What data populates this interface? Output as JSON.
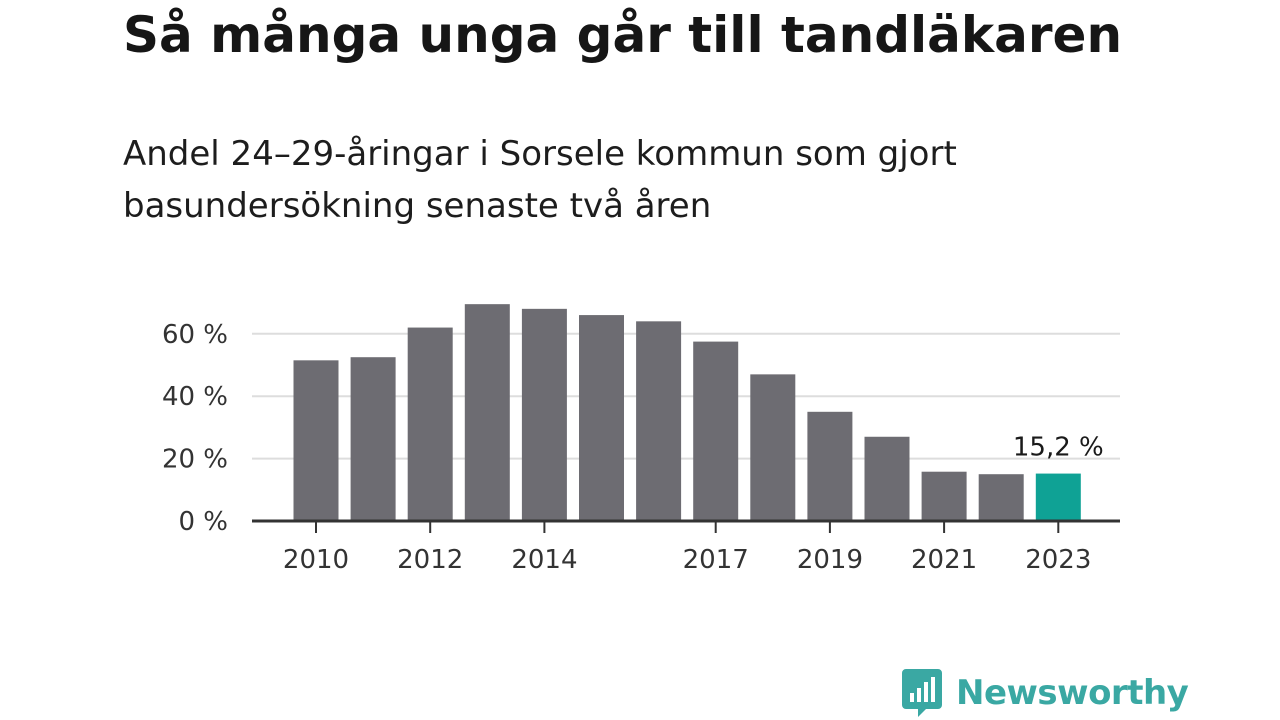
{
  "header": {
    "title": "Så många unga går till tandläkaren",
    "subtitle": "Andel 24–29-åringar i Sorsele kommun som gjort basundersökning senaste två åren"
  },
  "brand": {
    "name": "Newsworthy",
    "icon": "chart-bubble-icon",
    "color": "#3aa8a3"
  },
  "chart_data": {
    "type": "bar",
    "title": "",
    "xlabel": "",
    "ylabel": "",
    "categories": [
      "2010",
      "2011",
      "2012",
      "2013",
      "2014",
      "2015",
      "2016",
      "2017",
      "2018",
      "2019",
      "2020",
      "2021",
      "2022",
      "2023"
    ],
    "values": [
      51.5,
      52.5,
      62,
      69.5,
      68,
      66,
      64,
      57.5,
      47,
      35,
      27,
      15.8,
      15,
      15.2
    ],
    "x_tick_labels": [
      "2010",
      "2012",
      "2014",
      "2017",
      "2019",
      "2021",
      "2023"
    ],
    "y_ticks": [
      0,
      20,
      40,
      60
    ],
    "y_tick_labels": [
      "0 %",
      "20 %",
      "40 %",
      "60 %"
    ],
    "ylim": [
      0,
      70
    ],
    "grid": true,
    "colors": {
      "bar": "#6d6c72",
      "highlight": "#0fa295",
      "grid": "#dddddd",
      "axis": "#333333"
    },
    "highlight": {
      "category": "2023",
      "label": "15,2 %"
    }
  }
}
